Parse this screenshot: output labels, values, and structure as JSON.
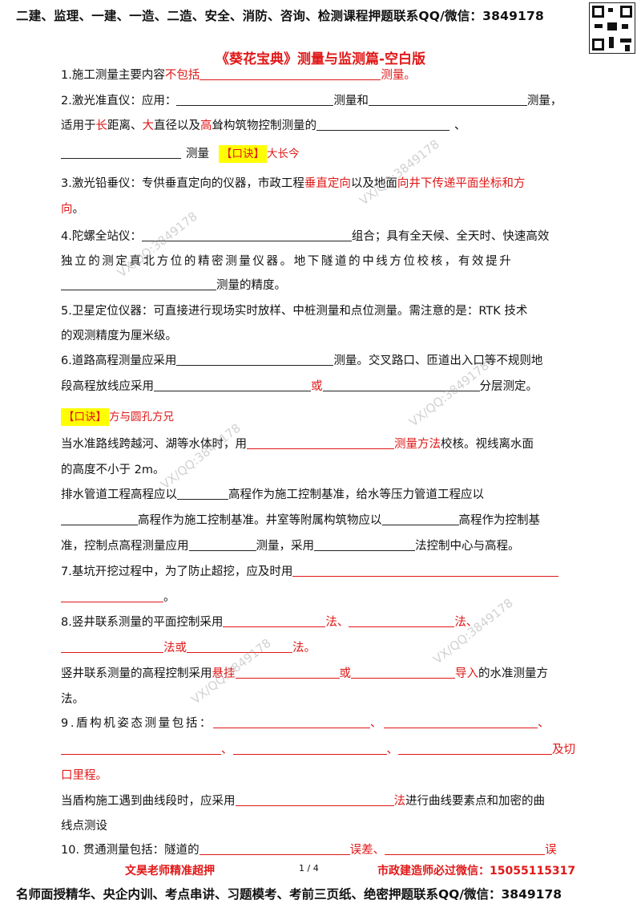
{
  "header": {
    "text": "二建、监理、一建、一造、二造、安全、消防、咨询、检测课程押题联系QQ/微信：3849178"
  },
  "title": "《葵花宝典》测量与监测篇-空白版",
  "watermark": "VX/QQ:3849178",
  "items": {
    "q1": {
      "a": "1.施工测量主要内容",
      "b": "不包括",
      "c": "测量。"
    },
    "q2": {
      "l1a": "2.激光准直仪：应用：",
      "l1b": "测量和",
      "l1c": "测量，",
      "l2a": "适用于",
      "l2b": "长",
      "l2c": "距离、",
      "l2d": "大",
      "l2e": "直径以及",
      "l2f": "高",
      "l2g": "耸构筑物控制测量的",
      "l2h": "、",
      "l3a": "测量",
      "koujue": "【口诀】",
      "koujue_text": "大长今"
    },
    "q3": {
      "a": "3.激光铅垂仪：专供垂直定向的仪器，市政工程",
      "b": "垂直定向",
      "c": "以及地面",
      "d": "向井下传递平面坐标和方",
      "e": "向",
      "f": "。"
    },
    "q4": {
      "l1a": "4.陀螺全站仪：",
      "l1b": "组合；具有全天候、全天时、快速高效",
      "l2": "独立的测定真北方位的精密测量仪器。地下隧道的中线方位校核，有效提升",
      "l3": "测量的精度。"
    },
    "q5": {
      "l1": "5.卫星定位仪器：可直接进行现场实时放样、中桩测量和点位测量。需注意的是：RTK 技术",
      "l2": "的观测精度为厘米级。"
    },
    "q6": {
      "l1a": "6.道路高程测量应采用",
      "l1b": "测量。交叉路口、匝道出入口等不规则地",
      "l2a": "段高程放线应采用",
      "l2b": "或",
      "l2c": "分层测定。",
      "koujue": "【口诀】",
      "koujue_text": "方与圆孔方兄"
    },
    "water": {
      "l1a": "当水准路线跨越河、湖等水体时，用",
      "l1b": "测量方法",
      "l1c": "校核。视线离水面",
      "l2": "的高度不小于 2m。"
    },
    "drain": {
      "l1a": "排水管道工程高程应以",
      "l1b": "高程作为施工控制基准，给水等压力管道工程应以",
      "l2a": "高程作为施工控制基准。井室等附属构筑物应以",
      "l2b": "高程作为控制基",
      "l3a": "准，控制点高程测量应用",
      "l3b": "测量，采用",
      "l3c": "法控制中心与高程。"
    },
    "q7": {
      "a": "7.基坑开挖过程中，为了防止超挖，应及时用",
      "b": "。"
    },
    "q8": {
      "l1a": "8.竖井联系测量的平面控制采用",
      "l1b": "法、",
      "l1c": "法、",
      "l2a": "法或",
      "l2b": "法。",
      "l3a": "竖井联系测量的高程控制采用",
      "l3b": "悬挂",
      "l3c": "或",
      "l3d": "导入",
      "l3e": "的水准测量方",
      "l4": "法。"
    },
    "q9": {
      "l1a": "9.盾构机姿态测量包括：",
      "l1b": "、",
      "l1c": "、",
      "l2a": "、",
      "l2b": "、",
      "l2c": "及切",
      "l3": "口里程。"
    },
    "curve": {
      "l1a": "当盾构施工遇到曲线段时，应采用",
      "l1b": "法",
      "l1c": "进行曲线要素点和加密的曲",
      "l2": "线点测设"
    },
    "q10": {
      "a": "10. 贯通测量包括：隧道的",
      "b": "误差、",
      "c": "误"
    }
  },
  "footer": {
    "left": "文昊老师精准超押",
    "page": "1 / 4",
    "right": "市政建造师必过微信：15055115317",
    "bottom": "名师面授精华、央企内训、考点串讲、习题模考、考前三页纸、绝密押题联系QQ/微信：3849178"
  }
}
